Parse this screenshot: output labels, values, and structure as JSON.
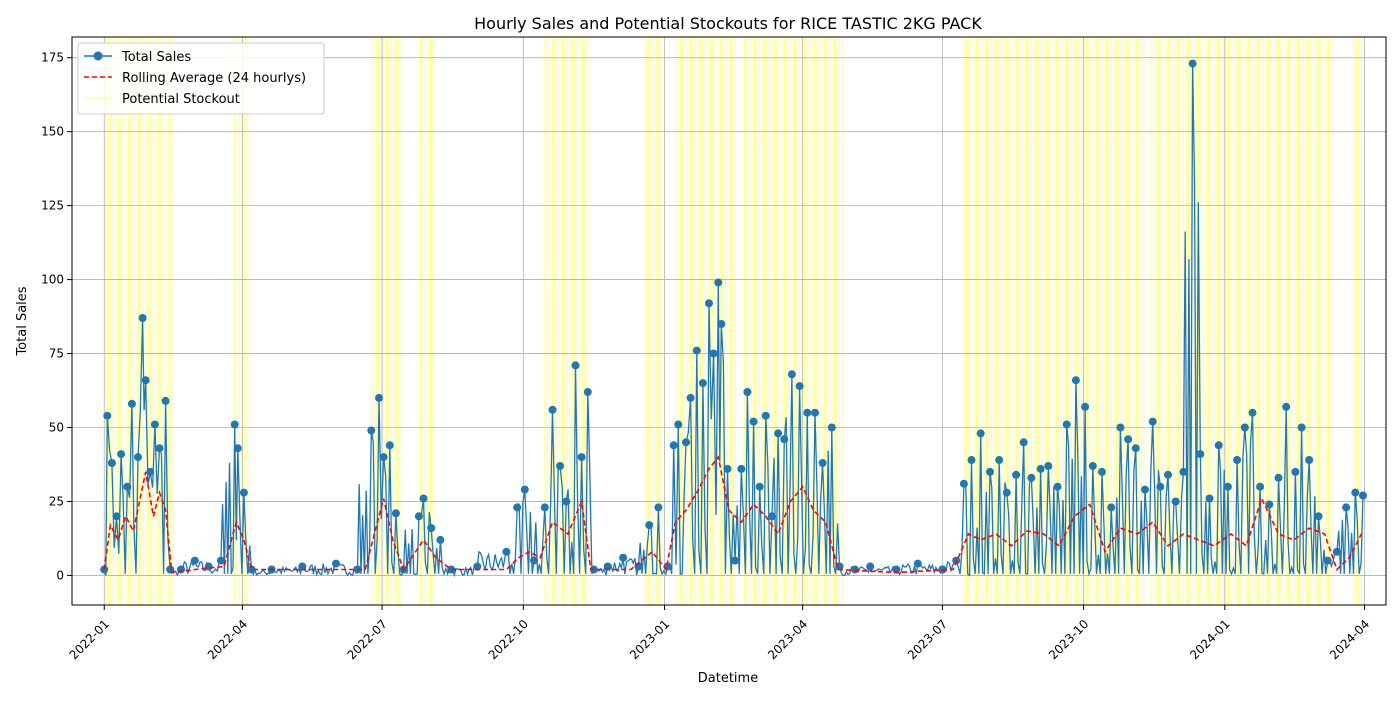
{
  "chart_data": {
    "type": "line",
    "title": "Hourly Sales and Potential Stockouts for RICE TASTIC 2KG PACK",
    "xlabel": "Datetime",
    "ylabel": "Total Sales",
    "xlim": [
      "2021-12-11",
      "2024-04-15"
    ],
    "ylim": [
      -10,
      182
    ],
    "x_ticks": [
      "2022-01",
      "2022-04",
      "2022-07",
      "2022-10",
      "2023-01",
      "2023-04",
      "2023-07",
      "2023-10",
      "2024-01",
      "2024-04"
    ],
    "y_ticks": [
      0,
      25,
      50,
      75,
      100,
      125,
      150,
      175
    ],
    "grid": true,
    "legend_position": "upper left",
    "legend": [
      "Total Sales",
      "Rolling Average (24 hourlys)",
      "Potential Stockout"
    ],
    "colors": {
      "total_sales": "#1f77b4",
      "rolling_average": "#ff0000",
      "stockout": "#ffff00",
      "grid": "#b0b0b0"
    },
    "series": [
      {
        "name": "Total Sales",
        "points": [
          [
            "2022-01-01",
            2
          ],
          [
            "2022-01-03",
            54
          ],
          [
            "2022-01-06",
            38
          ],
          [
            "2022-01-09",
            20
          ],
          [
            "2022-01-12",
            41
          ],
          [
            "2022-01-16",
            30
          ],
          [
            "2022-01-19",
            58
          ],
          [
            "2022-01-23",
            40
          ],
          [
            "2022-01-26",
            87
          ],
          [
            "2022-01-28",
            66
          ],
          [
            "2022-01-31",
            35
          ],
          [
            "2022-02-03",
            51
          ],
          [
            "2022-02-06",
            43
          ],
          [
            "2022-02-10",
            59
          ],
          [
            "2022-02-13",
            2
          ],
          [
            "2022-02-20",
            2
          ],
          [
            "2022-03-01",
            5
          ],
          [
            "2022-03-10",
            3
          ],
          [
            "2022-03-18",
            5
          ],
          [
            "2022-03-27",
            51
          ],
          [
            "2022-03-29",
            43
          ],
          [
            "2022-04-02",
            28
          ],
          [
            "2022-04-07",
            2
          ],
          [
            "2022-04-20",
            2
          ],
          [
            "2022-05-10",
            3
          ],
          [
            "2022-06-01",
            4
          ],
          [
            "2022-06-15",
            2
          ],
          [
            "2022-06-24",
            49
          ],
          [
            "2022-06-29",
            60
          ],
          [
            "2022-07-02",
            40
          ],
          [
            "2022-07-06",
            44
          ],
          [
            "2022-07-10",
            21
          ],
          [
            "2022-07-15",
            2
          ],
          [
            "2022-07-25",
            20
          ],
          [
            "2022-07-28",
            26
          ],
          [
            "2022-08-02",
            16
          ],
          [
            "2022-08-08",
            12
          ],
          [
            "2022-08-15",
            2
          ],
          [
            "2022-09-01",
            3
          ],
          [
            "2022-09-20",
            8
          ],
          [
            "2022-09-27",
            23
          ],
          [
            "2022-10-02",
            29
          ],
          [
            "2022-10-08",
            5
          ],
          [
            "2022-10-15",
            23
          ],
          [
            "2022-10-20",
            56
          ],
          [
            "2022-10-25",
            37
          ],
          [
            "2022-10-29",
            25
          ],
          [
            "2022-11-04",
            71
          ],
          [
            "2022-11-08",
            40
          ],
          [
            "2022-11-12",
            62
          ],
          [
            "2022-11-16",
            2
          ],
          [
            "2022-11-25",
            3
          ],
          [
            "2022-12-05",
            6
          ],
          [
            "2022-12-15",
            3
          ],
          [
            "2022-12-22",
            17
          ],
          [
            "2022-12-28",
            23
          ],
          [
            "2023-01-03",
            3
          ],
          [
            "2023-01-07",
            44
          ],
          [
            "2023-01-10",
            51
          ],
          [
            "2023-01-15",
            45
          ],
          [
            "2023-01-18",
            60
          ],
          [
            "2023-01-22",
            76
          ],
          [
            "2023-01-26",
            65
          ],
          [
            "2023-01-30",
            92
          ],
          [
            "2023-02-02",
            75
          ],
          [
            "2023-02-05",
            99
          ],
          [
            "2023-02-07",
            85
          ],
          [
            "2023-02-11",
            36
          ],
          [
            "2023-02-16",
            5
          ],
          [
            "2023-02-20",
            36
          ],
          [
            "2023-02-24",
            62
          ],
          [
            "2023-02-28",
            52
          ],
          [
            "2023-03-04",
            30
          ],
          [
            "2023-03-08",
            54
          ],
          [
            "2023-03-12",
            20
          ],
          [
            "2023-03-16",
            48
          ],
          [
            "2023-03-20",
            46
          ],
          [
            "2023-03-25",
            68
          ],
          [
            "2023-03-30",
            64
          ],
          [
            "2023-04-04",
            55
          ],
          [
            "2023-04-09",
            55
          ],
          [
            "2023-04-14",
            38
          ],
          [
            "2023-04-20",
            50
          ],
          [
            "2023-04-25",
            3
          ],
          [
            "2023-05-05",
            2
          ],
          [
            "2023-05-15",
            3
          ],
          [
            "2023-06-01",
            2
          ],
          [
            "2023-06-15",
            4
          ],
          [
            "2023-07-01",
            2
          ],
          [
            "2023-07-10",
            5
          ],
          [
            "2023-07-15",
            31
          ],
          [
            "2023-07-20",
            39
          ],
          [
            "2023-07-26",
            48
          ],
          [
            "2023-08-01",
            35
          ],
          [
            "2023-08-07",
            39
          ],
          [
            "2023-08-12",
            28
          ],
          [
            "2023-08-18",
            34
          ],
          [
            "2023-08-23",
            45
          ],
          [
            "2023-08-28",
            33
          ],
          [
            "2023-09-03",
            36
          ],
          [
            "2023-09-08",
            37
          ],
          [
            "2023-09-14",
            30
          ],
          [
            "2023-09-20",
            51
          ],
          [
            "2023-09-26",
            66
          ],
          [
            "2023-10-02",
            57
          ],
          [
            "2023-10-07",
            37
          ],
          [
            "2023-10-13",
            35
          ],
          [
            "2023-10-19",
            23
          ],
          [
            "2023-10-25",
            50
          ],
          [
            "2023-10-30",
            46
          ],
          [
            "2023-11-04",
            43
          ],
          [
            "2023-11-10",
            29
          ],
          [
            "2023-11-15",
            52
          ],
          [
            "2023-11-20",
            30
          ],
          [
            "2023-11-25",
            34
          ],
          [
            "2023-11-30",
            25
          ],
          [
            "2023-12-05",
            35
          ],
          [
            "2023-12-11",
            173
          ],
          [
            "2023-12-16",
            41
          ],
          [
            "2023-12-22",
            26
          ],
          [
            "2023-12-28",
            44
          ],
          [
            "2024-01-03",
            30
          ],
          [
            "2024-01-09",
            39
          ],
          [
            "2024-01-14",
            50
          ],
          [
            "2024-01-19",
            55
          ],
          [
            "2024-01-24",
            30
          ],
          [
            "2024-01-30",
            24
          ],
          [
            "2024-02-05",
            33
          ],
          [
            "2024-02-10",
            57
          ],
          [
            "2024-02-16",
            35
          ],
          [
            "2024-02-20",
            50
          ],
          [
            "2024-02-25",
            39
          ],
          [
            "2024-03-02",
            20
          ],
          [
            "2024-03-08",
            5
          ],
          [
            "2024-03-14",
            8
          ],
          [
            "2024-03-20",
            23
          ],
          [
            "2024-03-26",
            28
          ],
          [
            "2024-03-31",
            27
          ]
        ]
      },
      {
        "name": "Rolling Average (24 hourlys)",
        "points": [
          [
            "2022-01-01",
            2
          ],
          [
            "2022-01-05",
            17
          ],
          [
            "2022-01-10",
            12
          ],
          [
            "2022-01-15",
            20
          ],
          [
            "2022-01-20",
            15
          ],
          [
            "2022-01-24",
            25
          ],
          [
            "2022-01-28",
            35
          ],
          [
            "2022-02-02",
            20
          ],
          [
            "2022-02-06",
            28
          ],
          [
            "2022-02-10",
            22
          ],
          [
            "2022-02-14",
            1
          ],
          [
            "2022-03-01",
            2
          ],
          [
            "2022-03-20",
            3
          ],
          [
            "2022-03-28",
            18
          ],
          [
            "2022-04-02",
            12
          ],
          [
            "2022-04-07",
            2
          ],
          [
            "2022-05-15",
            2
          ],
          [
            "2022-06-20",
            2
          ],
          [
            "2022-06-27",
            16
          ],
          [
            "2022-07-02",
            26
          ],
          [
            "2022-07-08",
            12
          ],
          [
            "2022-07-15",
            2
          ],
          [
            "2022-07-28",
            12
          ],
          [
            "2022-08-05",
            6
          ],
          [
            "2022-08-15",
            2
          ],
          [
            "2022-09-20",
            2
          ],
          [
            "2022-09-28",
            6
          ],
          [
            "2022-10-05",
            8
          ],
          [
            "2022-10-12",
            6
          ],
          [
            "2022-10-20",
            18
          ],
          [
            "2022-10-30",
            14
          ],
          [
            "2022-11-08",
            25
          ],
          [
            "2022-11-14",
            2
          ],
          [
            "2022-12-10",
            2
          ],
          [
            "2022-12-24",
            8
          ],
          [
            "2023-01-02",
            2
          ],
          [
            "2023-01-08",
            18
          ],
          [
            "2023-01-15",
            22
          ],
          [
            "2023-01-22",
            28
          ],
          [
            "2023-01-30",
            36
          ],
          [
            "2023-02-05",
            40
          ],
          [
            "2023-02-12",
            22
          ],
          [
            "2023-02-20",
            18
          ],
          [
            "2023-02-28",
            24
          ],
          [
            "2023-03-08",
            20
          ],
          [
            "2023-03-16",
            14
          ],
          [
            "2023-03-24",
            25
          ],
          [
            "2023-04-01",
            30
          ],
          [
            "2023-04-08",
            22
          ],
          [
            "2023-04-16",
            18
          ],
          [
            "2023-04-24",
            2
          ],
          [
            "2023-06-01",
            1
          ],
          [
            "2023-07-08",
            2
          ],
          [
            "2023-07-18",
            14
          ],
          [
            "2023-07-26",
            12
          ],
          [
            "2023-08-05",
            14
          ],
          [
            "2023-08-15",
            10
          ],
          [
            "2023-08-25",
            15
          ],
          [
            "2023-09-05",
            14
          ],
          [
            "2023-09-15",
            10
          ],
          [
            "2023-09-25",
            20
          ],
          [
            "2023-10-05",
            24
          ],
          [
            "2023-10-15",
            8
          ],
          [
            "2023-10-25",
            16
          ],
          [
            "2023-11-05",
            14
          ],
          [
            "2023-11-15",
            18
          ],
          [
            "2023-11-25",
            10
          ],
          [
            "2023-12-05",
            14
          ],
          [
            "2023-12-15",
            12
          ],
          [
            "2023-12-25",
            10
          ],
          [
            "2024-01-05",
            14
          ],
          [
            "2024-01-15",
            10
          ],
          [
            "2024-01-25",
            26
          ],
          [
            "2024-02-05",
            14
          ],
          [
            "2024-02-15",
            12
          ],
          [
            "2024-02-25",
            16
          ],
          [
            "2024-03-06",
            14
          ],
          [
            "2024-03-14",
            2
          ],
          [
            "2024-03-22",
            6
          ],
          [
            "2024-03-31",
            15
          ]
        ]
      }
    ],
    "stockout_periods": [
      [
        "2022-01-02",
        "2022-02-15"
      ],
      [
        "2022-03-27",
        "2022-04-07"
      ],
      [
        "2022-06-24",
        "2022-07-14"
      ],
      [
        "2022-07-26",
        "2022-08-06"
      ],
      [
        "2022-10-15",
        "2022-11-14"
      ],
      [
        "2022-12-20",
        "2022-12-30"
      ],
      [
        "2023-01-08",
        "2023-02-17"
      ],
      [
        "2023-02-22",
        "2023-04-27"
      ],
      [
        "2023-07-15",
        "2023-11-10"
      ],
      [
        "2023-11-14",
        "2024-03-12"
      ],
      [
        "2024-03-25",
        "2024-03-31"
      ]
    ]
  }
}
